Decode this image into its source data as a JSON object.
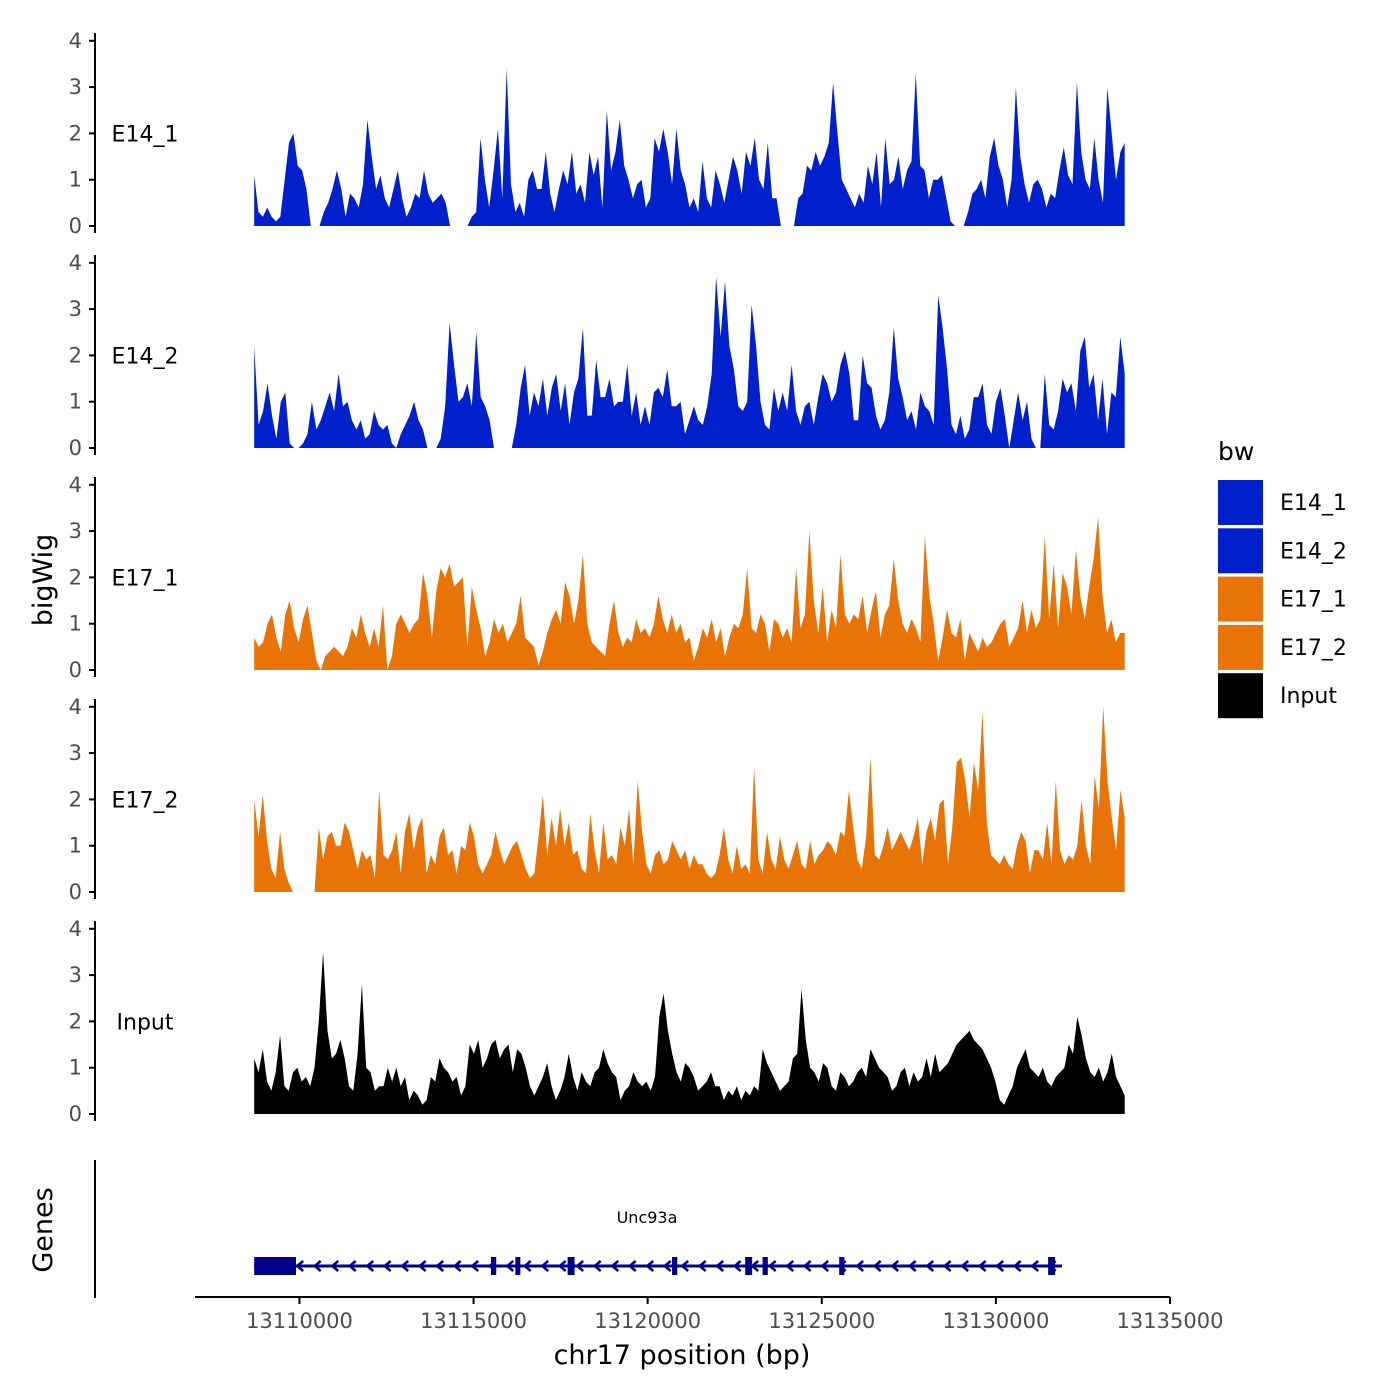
{
  "chart_data": {
    "type": "area",
    "y_axis_label": "bigWig",
    "x_axis_label": "chr17 position (bp)",
    "xlim": [
      13107000,
      13135000
    ],
    "x_ticks": [
      13110000,
      13115000,
      13120000,
      13125000,
      13130000,
      13135000
    ],
    "y_ticks": [
      0,
      1,
      2,
      3,
      4
    ],
    "ylim": [
      0,
      4.2
    ],
    "data_x_range": [
      13108700,
      13133700
    ],
    "legend": {
      "title": "bw",
      "position": "right",
      "entries": [
        {
          "label": "E14_1",
          "color": "#0020CC"
        },
        {
          "label": "E14_2",
          "color": "#0020CC"
        },
        {
          "label": "E17_1",
          "color": "#E87306"
        },
        {
          "label": "E17_2",
          "color": "#E87306"
        },
        {
          "label": "Input",
          "color": "#000000"
        }
      ]
    },
    "series": [
      {
        "name": "E14_1",
        "color": "#0020CC",
        "values": [
          1.1,
          0.3,
          0.2,
          0.4,
          0.2,
          0.1,
          0.2,
          1.0,
          1.8,
          2.0,
          1.3,
          1.2,
          0.8,
          0.0,
          0.0,
          0.0,
          0.3,
          0.5,
          0.8,
          1.2,
          0.8,
          0.2,
          0.7,
          0.6,
          0.4,
          0.9,
          2.3,
          1.5,
          0.8,
          1.1,
          0.6,
          0.4,
          0.8,
          1.2,
          0.6,
          0.2,
          0.4,
          0.7,
          0.6,
          1.2,
          0.7,
          0.5,
          0.6,
          0.7,
          0.5,
          0.0,
          0.0,
          0.0,
          0.0,
          0.0,
          0.2,
          0.3,
          1.9,
          1.0,
          0.4,
          1.2,
          2.1,
          0.6,
          3.4,
          0.9,
          0.3,
          0.5,
          0.2,
          1.0,
          1.2,
          0.8,
          0.8,
          1.6,
          0.7,
          0.3,
          0.8,
          1.2,
          0.9,
          1.6,
          0.7,
          0.9,
          0.5,
          1.6,
          1.1,
          1.5,
          0.4,
          2.5,
          1.2,
          1.6,
          2.3,
          1.3,
          1.0,
          0.6,
          0.9,
          1.0,
          0.4,
          0.6,
          1.9,
          1.6,
          2.1,
          1.6,
          0.9,
          2.1,
          1.2,
          0.9,
          0.4,
          0.6,
          0.3,
          1.4,
          0.6,
          0.4,
          1.2,
          0.9,
          0.5,
          1.0,
          1.5,
          1.2,
          0.7,
          1.6,
          1.3,
          1.9,
          1.0,
          0.8,
          1.8,
          0.6,
          0.6,
          0.0,
          0.0,
          0.0,
          0.0,
          0.6,
          0.7,
          1.3,
          1.2,
          1.6,
          1.3,
          1.5,
          1.8,
          3.1,
          2.0,
          1.0,
          0.8,
          0.6,
          0.4,
          0.7,
          0.5,
          1.3,
          0.9,
          1.6,
          0.4,
          1.9,
          0.9,
          1.0,
          1.5,
          0.8,
          1.2,
          1.4,
          3.3,
          1.3,
          1.2,
          0.6,
          1.0,
          1.0,
          1.1,
          0.6,
          0.1,
          0.0,
          0.0,
          0.0,
          0.3,
          0.7,
          0.8,
          1.0,
          0.6,
          1.5,
          1.9,
          1.3,
          1.0,
          0.4,
          1.0,
          3.0,
          1.5,
          0.9,
          0.5,
          0.9,
          1.0,
          0.8,
          0.4,
          0.7,
          0.6,
          1.2,
          1.7,
          1.1,
          0.9,
          3.1,
          1.6,
          1.0,
          0.8,
          1.9,
          1.0,
          0.5,
          3.0,
          2.0,
          1.0,
          1.6,
          1.8
        ]
      },
      {
        "name": "E14_2",
        "color": "#0020CC",
        "values": [
          2.2,
          0.5,
          0.8,
          1.4,
          0.7,
          0.2,
          1.0,
          1.2,
          0.1,
          0.0,
          0.0,
          0.1,
          0.3,
          1.0,
          0.4,
          0.6,
          0.9,
          1.2,
          0.8,
          1.6,
          0.9,
          1.0,
          0.6,
          0.4,
          0.6,
          0.2,
          0.3,
          0.8,
          0.5,
          0.4,
          0.5,
          0.1,
          0.0,
          0.3,
          0.5,
          0.7,
          1.0,
          0.6,
          0.4,
          0.0,
          0.0,
          0.0,
          0.2,
          0.9,
          2.7,
          1.8,
          1.0,
          1.1,
          1.4,
          0.9,
          2.5,
          1.1,
          0.9,
          0.6,
          0.0,
          0.0,
          0.0,
          0.0,
          0.0,
          0.5,
          1.3,
          1.8,
          0.7,
          1.2,
          0.9,
          1.5,
          0.7,
          1.3,
          1.6,
          0.8,
          1.4,
          0.5,
          1.2,
          1.5,
          2.6,
          0.7,
          0.7,
          1.9,
          1.1,
          1.1,
          1.5,
          0.9,
          1.0,
          1.0,
          1.8,
          0.7,
          1.2,
          0.5,
          0.9,
          0.5,
          1.2,
          1.3,
          1.1,
          1.7,
          0.9,
          0.9,
          1.0,
          0.3,
          0.6,
          0.9,
          0.6,
          0.5,
          0.9,
          1.6,
          3.7,
          2.4,
          3.6,
          2.2,
          1.7,
          0.9,
          0.8,
          1.0,
          3.1,
          2.2,
          1.0,
          0.5,
          0.4,
          1.3,
          0.8,
          1.2,
          0.8,
          1.8,
          0.8,
          0.5,
          0.9,
          1.0,
          0.5,
          1.1,
          1.6,
          1.4,
          1.0,
          1.2,
          1.8,
          2.1,
          1.6,
          0.6,
          0.6,
          2.0,
          1.4,
          1.3,
          0.7,
          0.4,
          0.6,
          1.2,
          2.6,
          1.5,
          1.1,
          0.6,
          0.8,
          0.4,
          1.2,
          0.9,
          0.8,
          0.5,
          3.3,
          2.6,
          1.7,
          0.5,
          0.3,
          0.7,
          0.2,
          0.4,
          1.1,
          1.1,
          1.4,
          0.5,
          0.3,
          1.0,
          1.3,
          0.7,
          0.0,
          0.6,
          1.2,
          0.6,
          1.0,
          0.2,
          0.0,
          0.0,
          1.6,
          0.5,
          0.4,
          0.8,
          1.5,
          1.2,
          1.4,
          0.8,
          2.1,
          2.4,
          1.3,
          1.6,
          0.6,
          1.5,
          0.3,
          1.2,
          1.1,
          2.4,
          1.6
        ]
      },
      {
        "name": "E17_1",
        "color": "#E87306",
        "values": [
          0.7,
          0.5,
          0.6,
          1.0,
          1.2,
          0.7,
          0.4,
          1.2,
          1.5,
          0.9,
          0.6,
          1.1,
          1.4,
          0.8,
          0.2,
          0.0,
          0.3,
          0.4,
          0.5,
          0.4,
          0.3,
          0.5,
          0.9,
          0.7,
          1.2,
          0.8,
          0.5,
          0.9,
          0.5,
          1.4,
          0.0,
          0.3,
          1.0,
          1.2,
          1.0,
          0.8,
          1.0,
          1.1,
          2.1,
          1.6,
          0.7,
          1.7,
          2.2,
          2.0,
          2.3,
          1.8,
          1.9,
          2.0,
          0.5,
          1.8,
          1.3,
          0.9,
          0.3,
          0.6,
          1.1,
          0.8,
          1.0,
          0.6,
          0.8,
          1.0,
          1.6,
          0.7,
          0.6,
          0.5,
          0.1,
          0.4,
          0.8,
          1.1,
          1.3,
          1.0,
          1.9,
          1.6,
          1.0,
          1.5,
          2.5,
          1.0,
          0.6,
          0.5,
          0.4,
          0.3,
          1.0,
          1.5,
          0.8,
          0.5,
          0.7,
          0.6,
          1.1,
          0.8,
          0.9,
          0.7,
          1.0,
          1.6,
          1.1,
          0.8,
          1.2,
          0.8,
          1.0,
          0.6,
          0.7,
          0.2,
          0.5,
          0.9,
          0.7,
          1.1,
          0.6,
          0.9,
          0.3,
          0.7,
          1.0,
          0.9,
          1.2,
          2.2,
          0.9,
          0.8,
          1.2,
          1.0,
          0.4,
          1.1,
          1.0,
          0.7,
          0.9,
          0.6,
          2.2,
          0.9,
          1.2,
          3.0,
          1.5,
          0.8,
          1.8,
          0.6,
          1.3,
          0.9,
          2.5,
          1.2,
          1.0,
          1.2,
          1.1,
          1.6,
          0.8,
          1.3,
          1.7,
          0.7,
          1.2,
          1.4,
          2.4,
          1.5,
          1.0,
          0.8,
          1.1,
          0.9,
          0.6,
          2.9,
          1.6,
          1.0,
          0.2,
          0.7,
          1.3,
          0.8,
          0.7,
          1.1,
          0.2,
          0.8,
          0.6,
          0.4,
          0.7,
          0.5,
          0.6,
          0.8,
          1.0,
          1.1,
          0.5,
          0.7,
          0.9,
          1.5,
          0.8,
          1.3,
          0.9,
          1.1,
          2.9,
          1.1,
          2.3,
          0.9,
          2.1,
          1.8,
          1.2,
          2.6,
          1.6,
          1.1,
          1.8,
          2.4,
          3.3,
          1.6,
          0.8,
          1.1,
          0.6,
          0.8,
          0.8
        ]
      },
      {
        "name": "E17_2",
        "color": "#E87306",
        "values": [
          2.0,
          1.2,
          2.1,
          1.1,
          0.5,
          0.3,
          1.3,
          0.5,
          0.2,
          0.0,
          0.0,
          0.0,
          0.0,
          0.0,
          0.0,
          1.4,
          0.7,
          1.2,
          1.3,
          1.0,
          1.0,
          1.5,
          1.3,
          0.9,
          0.5,
          0.9,
          0.7,
          0.8,
          0.3,
          2.2,
          0.8,
          0.7,
          0.9,
          1.3,
          0.4,
          1.3,
          1.7,
          0.9,
          1.4,
          1.6,
          0.4,
          0.8,
          0.6,
          1.2,
          1.4,
          0.8,
          0.9,
          0.4,
          1.0,
          0.9,
          1.5,
          1.2,
          0.6,
          0.4,
          0.6,
          0.8,
          1.3,
          0.9,
          0.6,
          0.8,
          1.0,
          1.1,
          0.8,
          0.5,
          0.3,
          0.4,
          1.2,
          2.1,
          0.8,
          1.6,
          1.0,
          1.8,
          1.0,
          1.5,
          0.8,
          0.9,
          0.5,
          0.4,
          1.7,
          0.9,
          0.4,
          1.5,
          0.7,
          0.8,
          0.6,
          1.4,
          1.0,
          1.8,
          0.6,
          2.4,
          1.3,
          0.6,
          0.4,
          0.8,
          0.9,
          0.6,
          0.7,
          1.1,
          0.9,
          0.7,
          0.9,
          0.5,
          0.8,
          0.6,
          0.6,
          0.4,
          0.3,
          0.4,
          0.8,
          1.4,
          0.7,
          0.4,
          1.0,
          0.5,
          0.6,
          0.4,
          2.7,
          0.7,
          0.4,
          1.3,
          0.7,
          0.5,
          1.2,
          0.7,
          0.5,
          0.8,
          1.1,
          0.6,
          0.5,
          1.1,
          0.6,
          0.8,
          0.9,
          1.1,
          1.0,
          0.8,
          1.3,
          1.2,
          2.2,
          1.4,
          0.7,
          0.5,
          1.2,
          2.9,
          0.8,
          0.7,
          1.0,
          1.4,
          0.9,
          1.1,
          1.3,
          1.1,
          0.9,
          1.2,
          1.6,
          0.6,
          1.3,
          1.6,
          1.1,
          1.9,
          2.0,
          0.6,
          1.4,
          2.8,
          2.9,
          2.4,
          1.6,
          2.8,
          2.2,
          3.9,
          1.5,
          0.8,
          0.7,
          0.6,
          0.8,
          0.6,
          0.5,
          1.0,
          1.3,
          1.1,
          0.4,
          0.9,
          0.9,
          0.7,
          1.5,
          0.6,
          2.4,
          0.9,
          0.6,
          0.8,
          0.7,
          1.0,
          2.0,
          1.0,
          0.6,
          2.5,
          1.8,
          4.0,
          2.4,
          1.6,
          0.9,
          2.2,
          1.6
        ]
      },
      {
        "name": "Input",
        "color": "#000000",
        "values": [
          1.2,
          0.9,
          1.4,
          0.7,
          0.5,
          0.9,
          1.7,
          0.6,
          0.5,
          0.9,
          1.0,
          0.7,
          0.8,
          0.6,
          1.0,
          2.0,
          3.5,
          1.8,
          1.2,
          1.3,
          1.6,
          1.2,
          0.6,
          0.5,
          1.3,
          2.8,
          1.0,
          0.9,
          0.5,
          0.6,
          0.6,
          1.0,
          0.7,
          1.0,
          0.6,
          0.8,
          0.3,
          0.5,
          0.4,
          0.2,
          0.3,
          0.8,
          0.7,
          1.2,
          1.0,
          0.9,
          0.7,
          0.8,
          0.4,
          0.6,
          1.5,
          1.3,
          1.6,
          1.0,
          1.2,
          1.5,
          1.6,
          1.2,
          1.4,
          1.5,
          0.9,
          1.4,
          1.3,
          1.0,
          0.6,
          0.4,
          0.6,
          0.8,
          1.1,
          0.6,
          0.3,
          0.5,
          0.8,
          1.3,
          0.8,
          0.5,
          0.9,
          0.7,
          0.6,
          0.9,
          1.0,
          1.4,
          1.1,
          0.9,
          0.8,
          0.3,
          0.5,
          0.6,
          0.9,
          0.7,
          0.6,
          0.7,
          0.5,
          0.8,
          2.1,
          2.6,
          1.8,
          1.3,
          0.9,
          0.7,
          1.1,
          1.0,
          0.8,
          0.5,
          0.6,
          0.7,
          0.9,
          0.6,
          0.6,
          0.3,
          0.5,
          0.4,
          0.6,
          0.3,
          0.5,
          0.4,
          0.6,
          0.5,
          1.4,
          1.1,
          0.9,
          0.7,
          0.5,
          0.6,
          0.7,
          1.2,
          1.3,
          2.7,
          1.6,
          1.0,
          0.9,
          0.7,
          1.1,
          1.0,
          0.6,
          0.5,
          0.9,
          0.8,
          0.6,
          0.7,
          0.9,
          1.0,
          0.8,
          1.4,
          1.2,
          1.0,
          0.9,
          0.8,
          0.5,
          0.6,
          0.9,
          1.0,
          0.6,
          0.9,
          0.7,
          0.8,
          1.2,
          0.8,
          1.3,
          0.9,
          1.0,
          1.1,
          1.3,
          1.5,
          1.6,
          1.7,
          1.8,
          1.6,
          1.5,
          1.4,
          1.2,
          1.0,
          0.7,
          0.3,
          0.2,
          0.4,
          0.6,
          1.0,
          1.2,
          1.4,
          1.0,
          0.9,
          0.8,
          1.0,
          0.7,
          0.6,
          0.8,
          0.9,
          1.0,
          1.5,
          1.3,
          2.1,
          1.7,
          1.2,
          0.9,
          0.8,
          1.0,
          0.7,
          0.9,
          1.3,
          0.8,
          0.6,
          0.4
        ]
      }
    ],
    "genes": {
      "axis_label": "Genes",
      "gene_name": "Unc93a",
      "start": 13108700,
      "end": 13131900,
      "strand": "-",
      "exons": [
        [
          13108700,
          13109900
        ],
        [
          13115500,
          13115650
        ],
        [
          13116200,
          13116300
        ],
        [
          13117700,
          13117900
        ],
        [
          13120700,
          13120850
        ],
        [
          13122800,
          13123000
        ],
        [
          13123300,
          13123450
        ],
        [
          13125500,
          13125650
        ],
        [
          13131500,
          13131700
        ]
      ]
    }
  }
}
